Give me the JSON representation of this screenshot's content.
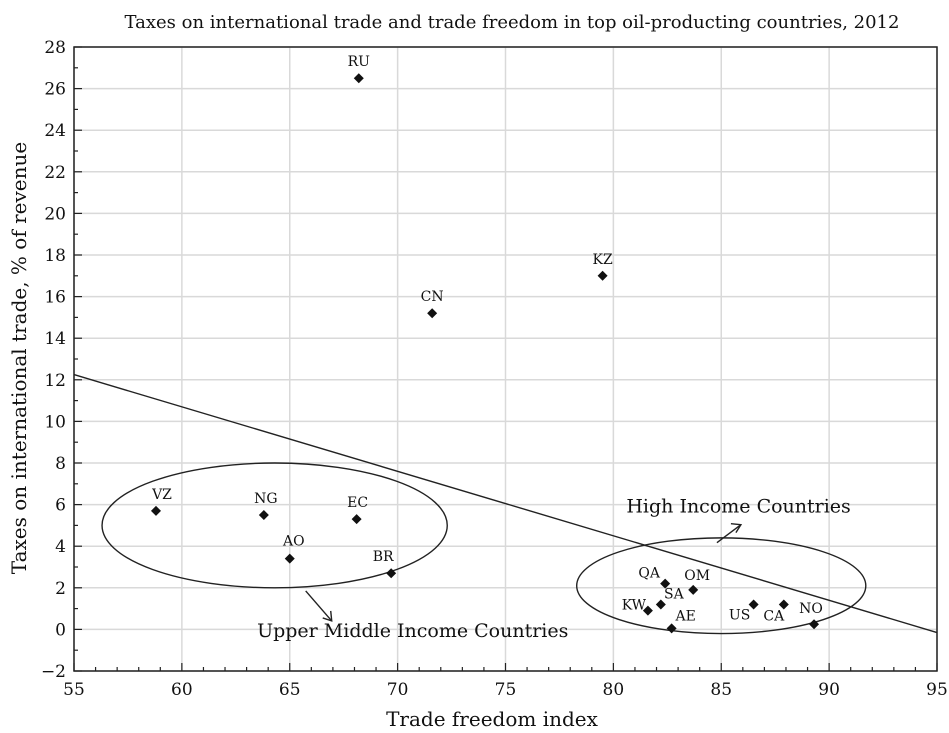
{
  "chart_data": {
    "type": "scatter",
    "title": "Taxes on international trade and trade freedom in top oil-producting countries, 2012",
    "xlabel": "Trade freedom index",
    "ylabel": "Taxes on international trade, % of revenue",
    "xlim": [
      55,
      95
    ],
    "ylim": [
      -2,
      28
    ],
    "xticks": [
      55,
      60,
      65,
      70,
      75,
      80,
      85,
      90,
      95
    ],
    "yticks": [
      -2,
      0,
      2,
      4,
      6,
      8,
      10,
      12,
      14,
      16,
      18,
      20,
      22,
      24,
      26,
      28
    ],
    "grid": true,
    "points": [
      {
        "label": "RU",
        "x": 68.2,
        "y": 26.5
      },
      {
        "label": "KZ",
        "x": 79.5,
        "y": 17.0
      },
      {
        "label": "CN",
        "x": 71.6,
        "y": 15.2
      },
      {
        "label": "VZ",
        "x": 58.8,
        "y": 5.7
      },
      {
        "label": "NG",
        "x": 63.8,
        "y": 5.5
      },
      {
        "label": "EC",
        "x": 68.1,
        "y": 5.3
      },
      {
        "label": "AO",
        "x": 65.0,
        "y": 3.4
      },
      {
        "label": "BR",
        "x": 69.7,
        "y": 2.7
      },
      {
        "label": "QA",
        "x": 82.4,
        "y": 2.2
      },
      {
        "label": "OM",
        "x": 83.7,
        "y": 1.9
      },
      {
        "label": "KW",
        "x": 81.6,
        "y": 0.9
      },
      {
        "label": "SA",
        "x": 82.2,
        "y": 1.2
      },
      {
        "label": "AE",
        "x": 82.7,
        "y": 0.05
      },
      {
        "label": "US",
        "x": 86.5,
        "y": 1.2
      },
      {
        "label": "CA",
        "x": 87.9,
        "y": 1.2
      },
      {
        "label": "NO",
        "x": 89.3,
        "y": 0.25
      }
    ],
    "trendline": {
      "x": [
        55,
        95
      ],
      "y": [
        12.25,
        -0.15
      ]
    },
    "groups": [
      {
        "label": "Upper Middle Income Countries",
        "cx": 64.3,
        "cy": 5.0,
        "rx": 8.0,
        "ry": 3.0
      },
      {
        "label": "High Income Countries",
        "cx": 85.0,
        "cy": 2.1,
        "rx": 6.7,
        "ry": 2.3
      }
    ]
  }
}
